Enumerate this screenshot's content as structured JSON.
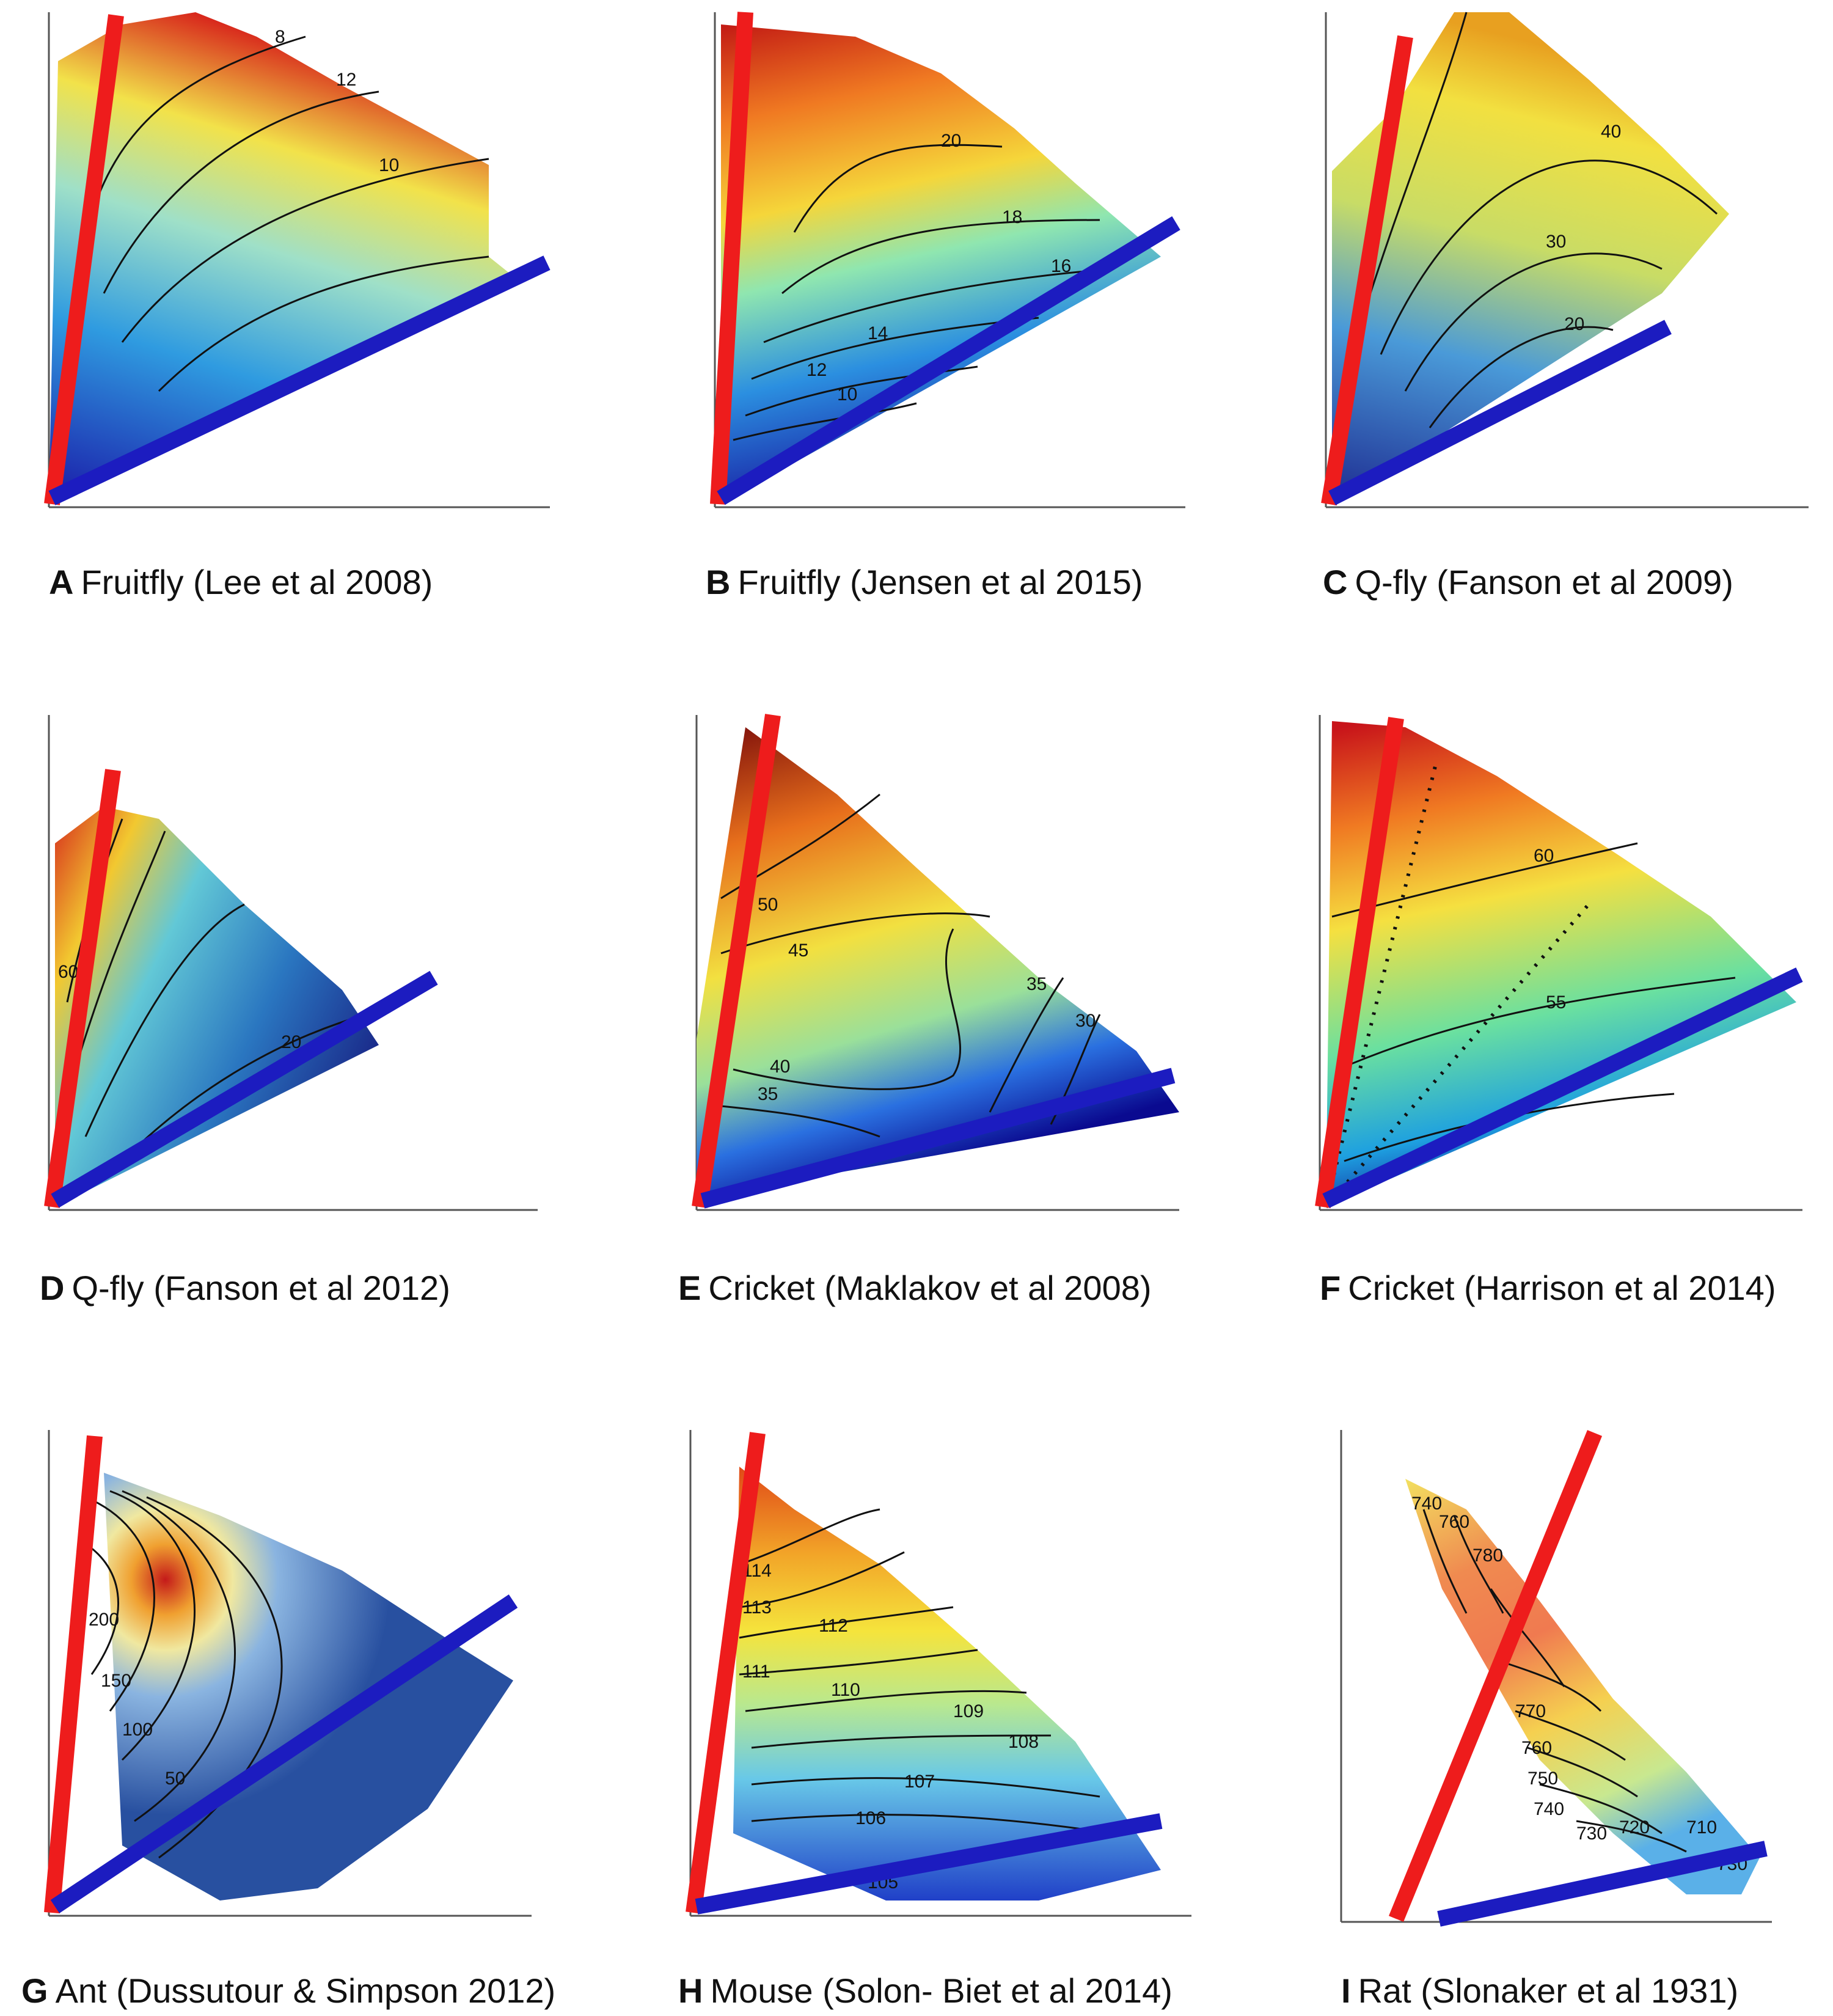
{
  "figure": {
    "panels": [
      {
        "letter": "A",
        "title": "Fruitfly (Lee et al 2008)",
        "contour_labels": [
          "8",
          "12",
          "10"
        ]
      },
      {
        "letter": "B",
        "title": "Fruitfly (Jensen et al 2015)",
        "contour_labels": [
          "20",
          "18",
          "16",
          "14",
          "12",
          "10"
        ]
      },
      {
        "letter": "C",
        "title": "Q-fly (Fanson et al 2009)",
        "contour_labels": [
          "40",
          "30",
          "20"
        ]
      },
      {
        "letter": "D",
        "title": "Q-fly (Fanson et al 2012)",
        "contour_labels": [
          "60",
          "20"
        ]
      },
      {
        "letter": "E",
        "title": "Cricket (Maklakov et al 2008)",
        "contour_labels": [
          "50",
          "45",
          "40",
          "35",
          "35",
          "30"
        ]
      },
      {
        "letter": "F",
        "title": "Cricket (Harrison et al 2014)",
        "contour_labels": [
          "60",
          "55"
        ]
      },
      {
        "letter": "G",
        "title": "Ant (Dussutour & Simpson 2012)",
        "contour_labels": [
          "200",
          "150",
          "100",
          "50"
        ]
      },
      {
        "letter": "H",
        "title": "Mouse (Solon- Biet et al 2014)",
        "contour_labels": [
          "114",
          "113",
          "112",
          "111",
          "110",
          "109",
          "108",
          "107",
          "106",
          "105"
        ]
      },
      {
        "letter": "I",
        "title": "Rat (Slonaker et al 1931)",
        "contour_labels": [
          "740",
          "760",
          "780",
          "770",
          "760",
          "750",
          "740",
          "730",
          "720",
          "710",
          "730"
        ]
      }
    ]
  },
  "chart_data": [
    {
      "type": "heatmap",
      "panel": "A",
      "title": "Fruitfly (Lee et al 2008)",
      "contours": [
        8,
        12,
        10
      ],
      "colormap": "blue-to-red",
      "overlays": [
        "red line",
        "blue line"
      ]
    },
    {
      "type": "heatmap",
      "panel": "B",
      "title": "Fruitfly (Jensen et al 2015)",
      "contours": [
        20,
        18,
        16,
        14,
        12,
        10
      ],
      "colormap": "blue-to-red",
      "overlays": [
        "red line",
        "blue line"
      ]
    },
    {
      "type": "heatmap",
      "panel": "C",
      "title": "Q-fly (Fanson et al 2009)",
      "contours": [
        40,
        30,
        20
      ],
      "colormap": "blue-to-red",
      "overlays": [
        "red line",
        "blue line"
      ]
    },
    {
      "type": "heatmap",
      "panel": "D",
      "title": "Q-fly (Fanson et al 2012)",
      "contours": [
        60,
        20
      ],
      "colormap": "blue-to-red",
      "overlays": [
        "red line",
        "blue line"
      ]
    },
    {
      "type": "heatmap",
      "panel": "E",
      "title": "Cricket (Maklakov et al 2008)",
      "contours": [
        50,
        45,
        40,
        35,
        30
      ],
      "colormap": "blue-to-red",
      "overlays": [
        "red line",
        "blue line"
      ]
    },
    {
      "type": "heatmap",
      "panel": "F",
      "title": "Cricket (Harrison et al 2014)",
      "contours": [
        60,
        55
      ],
      "colormap": "blue-to-red",
      "overlays": [
        "red line",
        "blue line"
      ]
    },
    {
      "type": "heatmap",
      "panel": "G",
      "title": "Ant (Dussutour & Simpson 2012)",
      "contours": [
        200,
        150,
        100,
        50
      ],
      "colormap": "blue-to-red",
      "overlays": [
        "red line",
        "blue line"
      ]
    },
    {
      "type": "heatmap",
      "panel": "H",
      "title": "Mouse (Solon- Biet et al 2014)",
      "contours": [
        114,
        113,
        112,
        111,
        110,
        109,
        108,
        107,
        106,
        105
      ],
      "colormap": "blue-to-red",
      "overlays": [
        "red line",
        "blue line"
      ]
    },
    {
      "type": "heatmap",
      "panel": "I",
      "title": "Rat (Slonaker et al 1931)",
      "contours": [
        740,
        760,
        780,
        770,
        760,
        750,
        740,
        730,
        720,
        710,
        730
      ],
      "colormap": "blue-to-red",
      "overlays": [
        "red line",
        "blue line"
      ]
    }
  ]
}
